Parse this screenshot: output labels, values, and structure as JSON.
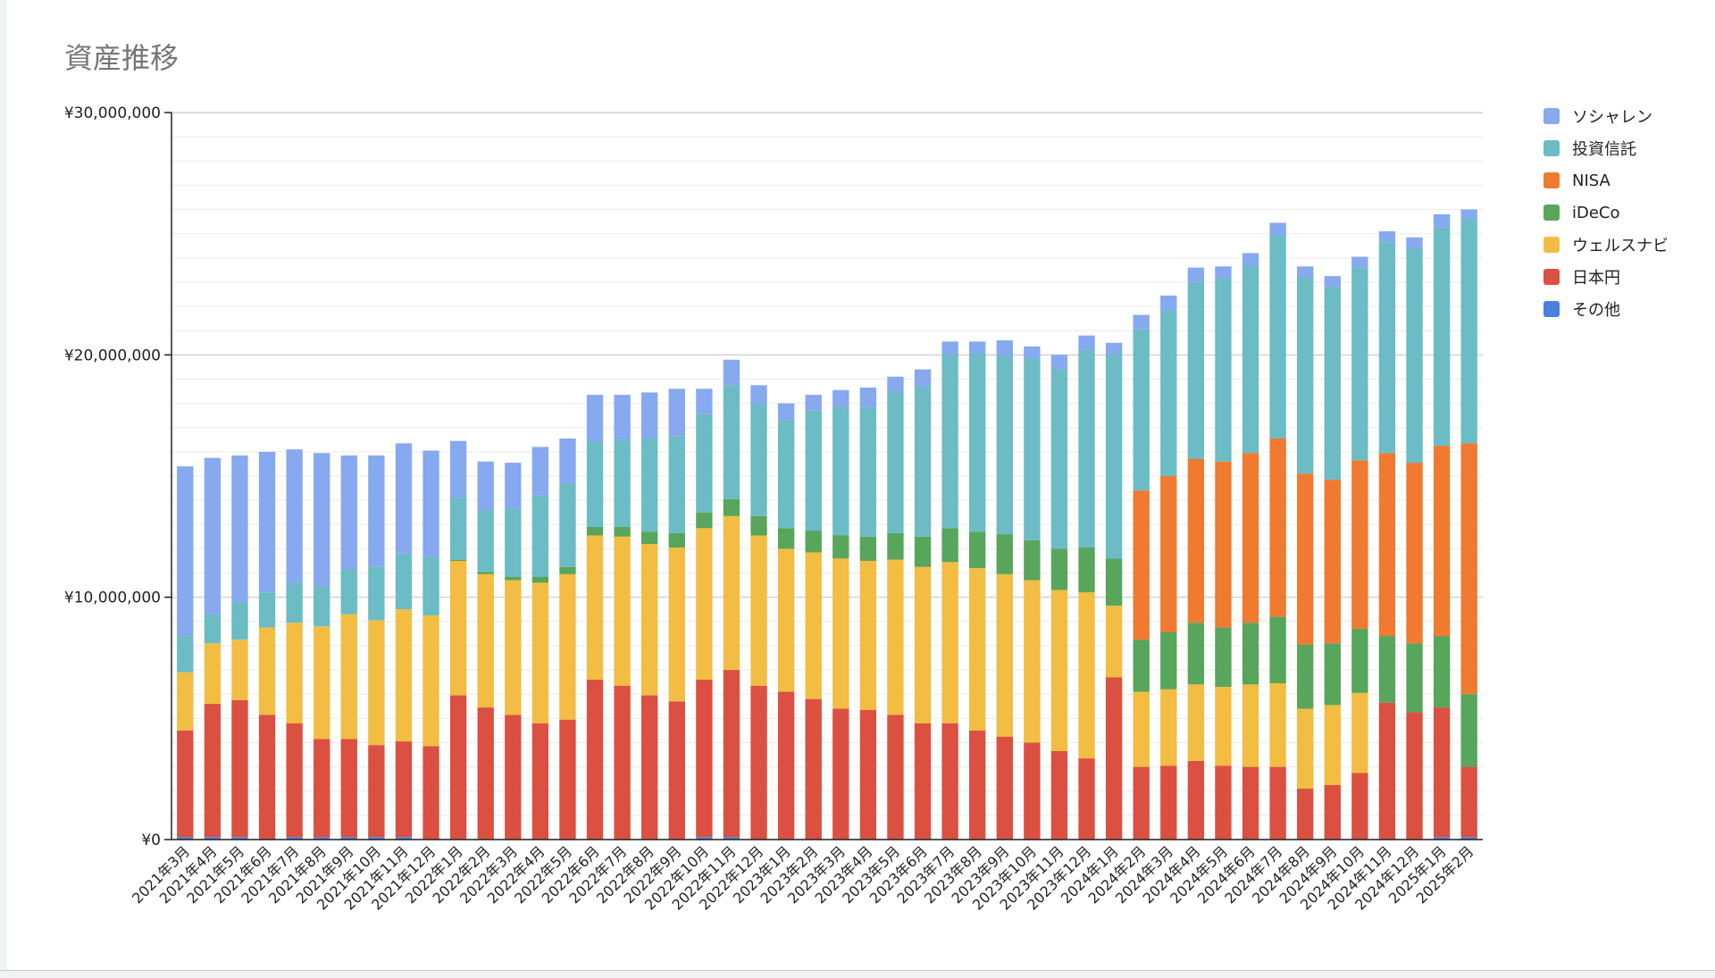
{
  "chart_data": {
    "type": "bar",
    "stacked": true,
    "title": "資産推移",
    "xlabel": "",
    "ylabel": "",
    "ylim": [
      0,
      30000000
    ],
    "yticks": [
      "¥0",
      "¥10,000,000",
      "¥20,000,000",
      "¥30,000,000"
    ],
    "grid": true,
    "legend_position": "right",
    "categories": [
      "2021年3月",
      "2021年4月",
      "2021年5月",
      "2021年6月",
      "2021年7月",
      "2021年8月",
      "2021年9月",
      "2021年10月",
      "2021年11月",
      "2021年12月",
      "2022年1月",
      "2022年2月",
      "2022年3月",
      "2022年4月",
      "2022年5月",
      "2022年6月",
      "2022年7月",
      "2022年8月",
      "2022年9月",
      "2022年10月",
      "2022年11月",
      "2022年12月",
      "2023年1月",
      "2023年2月",
      "2023年3月",
      "2023年4月",
      "2023年5月",
      "2023年6月",
      "2023年7月",
      "2023年8月",
      "2023年9月",
      "2023年10月",
      "2023年11月",
      "2023年12月",
      "2024年1月",
      "2024年2月",
      "2024年3月",
      "2024年4月",
      "2024年5月",
      "2024年6月",
      "2024年7月",
      "2024年8月",
      "2024年9月",
      "2024年10月",
      "2024年11月",
      "2024年12月",
      "2025年1月",
      "2025年2月"
    ],
    "series": [
      {
        "name": "その他",
        "color": "#4a7fe0",
        "values": [
          100000,
          100000,
          100000,
          0,
          100000,
          100000,
          100000,
          100000,
          100000,
          0,
          0,
          0,
          0,
          0,
          0,
          0,
          0,
          0,
          0,
          100000,
          100000,
          0,
          0,
          0,
          0,
          0,
          0,
          0,
          0,
          0,
          0,
          0,
          0,
          0,
          0,
          0,
          0,
          0,
          0,
          0,
          0,
          0,
          0,
          0,
          0,
          0,
          100000,
          100000
        ]
      },
      {
        "name": "日本円",
        "color": "#db5040",
        "values": [
          4400000,
          5500000,
          5650000,
          5150000,
          4700000,
          4050000,
          4050000,
          3800000,
          3950000,
          3850000,
          5950000,
          5450000,
          5150000,
          4800000,
          4950000,
          6600000,
          6350000,
          5950000,
          5700000,
          6500000,
          6900000,
          6350000,
          6100000,
          5800000,
          5400000,
          5350000,
          5150000,
          4800000,
          4800000,
          4500000,
          4250000,
          4000000,
          3650000,
          3350000,
          6700000,
          3000000,
          3050000,
          3250000,
          3050000,
          3000000,
          3000000,
          2100000,
          2250000,
          2750000,
          5650000,
          5250000,
          5350000,
          2900000
        ]
      },
      {
        "name": "ウェルスナビ",
        "color": "#f2bd42",
        "values": [
          2400000,
          2500000,
          2500000,
          3600000,
          4150000,
          4650000,
          5150000,
          5150000,
          5450000,
          5400000,
          5550000,
          5500000,
          5550000,
          5800000,
          6000000,
          5950000,
          6150000,
          6250000,
          6350000,
          6250000,
          6350000,
          6200000,
          5900000,
          6050000,
          6200000,
          6150000,
          6400000,
          6450000,
          6650000,
          6700000,
          6700000,
          6700000,
          6650000,
          6850000,
          2950000,
          3100000,
          3150000,
          3150000,
          3250000,
          3400000,
          3450000,
          3300000,
          3300000,
          3300000,
          0,
          0,
          0,
          0
        ]
      },
      {
        "name": "iDeCo",
        "color": "#58a55c",
        "values": [
          0,
          0,
          0,
          0,
          0,
          0,
          0,
          0,
          0,
          0,
          50000,
          100000,
          150000,
          250000,
          300000,
          350000,
          400000,
          500000,
          600000,
          650000,
          700000,
          800000,
          850000,
          900000,
          950000,
          1000000,
          1100000,
          1250000,
          1400000,
          1500000,
          1650000,
          1650000,
          1700000,
          1850000,
          1950000,
          2150000,
          2350000,
          2550000,
          2450000,
          2550000,
          2750000,
          2650000,
          2550000,
          2650000,
          2750000,
          2850000,
          2950000,
          3000000
        ]
      },
      {
        "name": "NISA",
        "color": "#ef7a30",
        "values": [
          0,
          0,
          0,
          0,
          0,
          0,
          0,
          0,
          0,
          0,
          0,
          0,
          0,
          0,
          0,
          0,
          0,
          0,
          0,
          0,
          0,
          0,
          0,
          0,
          0,
          0,
          0,
          0,
          0,
          0,
          0,
          0,
          0,
          0,
          0,
          6150000,
          6450000,
          6750000,
          6850000,
          7000000,
          7350000,
          7050000,
          6750000,
          6950000,
          7550000,
          7450000,
          7850000,
          10350000
        ]
      },
      {
        "name": "投資信託",
        "color": "#6bbcc4",
        "values": [
          1500000,
          1200000,
          1550000,
          1450000,
          1650000,
          1650000,
          1850000,
          2200000,
          2300000,
          2400000,
          2550000,
          2550000,
          2800000,
          3350000,
          3450000,
          3500000,
          3600000,
          3850000,
          4000000,
          4050000,
          4700000,
          4650000,
          4450000,
          4950000,
          5300000,
          5350000,
          5850000,
          6200000,
          7150000,
          7350000,
          7400000,
          7500000,
          7400000,
          8150000,
          8400000,
          6650000,
          6850000,
          7300000,
          7550000,
          7750000,
          8400000,
          8100000,
          7950000,
          7950000,
          8700000,
          8850000,
          9000000,
          9250000
        ]
      },
      {
        "name": "ソシャレン",
        "color": "#86a9f0",
        "values": [
          7000000,
          6450000,
          6050000,
          5800000,
          5500000,
          5500000,
          4700000,
          4600000,
          4550000,
          4400000,
          2350000,
          2000000,
          1900000,
          2000000,
          1850000,
          1950000,
          1850000,
          1900000,
          1950000,
          1050000,
          1050000,
          750000,
          700000,
          650000,
          700000,
          800000,
          600000,
          700000,
          550000,
          500000,
          600000,
          500000,
          600000,
          600000,
          500000,
          600000,
          600000,
          600000,
          500000,
          500000,
          500000,
          450000,
          450000,
          450000,
          450000,
          450000,
          550000,
          400000
        ]
      }
    ]
  }
}
